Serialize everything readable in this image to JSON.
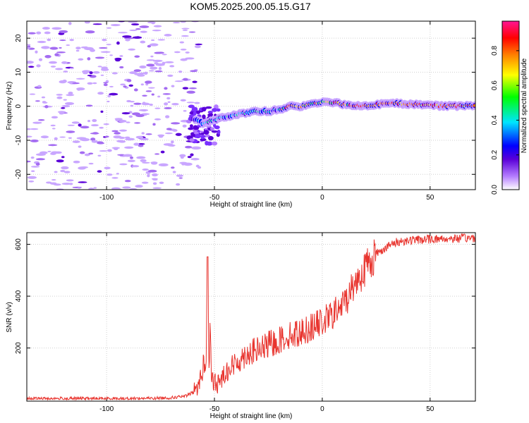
{
  "title": "KOM5.2025.200.05.15.G17",
  "colors": {
    "snr_line": "#e8342e",
    "grid": "#d0d0d0",
    "axis": "#000000",
    "colorbar": [
      "#ffffff",
      "#b47cff",
      "#5a00d8",
      "#0000ff",
      "#00e5ff",
      "#00ff00",
      "#ffff00",
      "#ff8000",
      "#ff0000",
      "#ff1493"
    ]
  },
  "chart_data": [
    {
      "type": "heatmap",
      "xlabel": "Height of straight line (km)",
      "ylabel": "Frequency (Hz)",
      "xlim": [
        -137,
        71
      ],
      "ylim": [
        -24.5,
        25
      ],
      "xticks": [
        -100,
        -50,
        0,
        50
      ],
      "yticks": [
        -20,
        -10,
        0,
        10,
        20
      ],
      "grid": true,
      "colorbar": {
        "label": "Normalized spectral amplitude",
        "range": [
          0,
          0.97
        ],
        "ticks": [
          0.0,
          0.2,
          0.4,
          0.6,
          0.8
        ]
      },
      "ridge": [
        [
          -59,
          -4
        ],
        [
          -55,
          -5
        ],
        [
          -50,
          -4
        ],
        [
          -45,
          -3
        ],
        [
          -40,
          -2.5
        ],
        [
          -35,
          -2
        ],
        [
          -30,
          -1.5
        ],
        [
          -25,
          -1.5
        ],
        [
          -20,
          -1
        ],
        [
          -15,
          0
        ],
        [
          -10,
          0
        ],
        [
          -5,
          0.5
        ],
        [
          0,
          1.2
        ],
        [
          5,
          1.2
        ],
        [
          10,
          0.5
        ],
        [
          15,
          0
        ],
        [
          20,
          0.2
        ],
        [
          25,
          0.4
        ],
        [
          30,
          0.8
        ],
        [
          35,
          0.8
        ],
        [
          40,
          0.7
        ],
        [
          45,
          0.5
        ],
        [
          50,
          0.3
        ],
        [
          55,
          0.1
        ],
        [
          60,
          0.1
        ],
        [
          65,
          0.1
        ],
        [
          71,
          0.1
        ]
      ]
    },
    {
      "type": "line",
      "xlabel": "Height of straight line (km)",
      "ylabel": "SNR (v/v)",
      "xlim": [
        -137,
        71
      ],
      "ylim": [
        -5,
        645
      ],
      "xticks": [
        -100,
        -50,
        0,
        50
      ],
      "yticks": [
        200,
        400,
        600
      ],
      "grid": true,
      "series": [
        {
          "x": [
            -137,
            -120,
            -100,
            -80,
            -70,
            -63,
            -60,
            -58,
            -56,
            -55,
            -54,
            -53.2,
            -53,
            -52.5,
            -52,
            -51.5,
            -51,
            -50.5,
            -50,
            -48,
            -45,
            -40,
            -35,
            -30,
            -25,
            -20,
            -15,
            -10,
            -5,
            0,
            5,
            10,
            15,
            20,
            25,
            30,
            35,
            40,
            50,
            60,
            71
          ],
          "y": [
            5,
            5,
            5,
            6,
            8,
            15,
            30,
            50,
            90,
            150,
            100,
            555,
            300,
            120,
            300,
            100,
            80,
            60,
            70,
            60,
            110,
            140,
            180,
            190,
            210,
            230,
            250,
            260,
            280,
            300,
            330,
            370,
            450,
            510,
            565,
            590,
            610,
            615,
            620,
            622,
            625
          ]
        }
      ]
    }
  ]
}
